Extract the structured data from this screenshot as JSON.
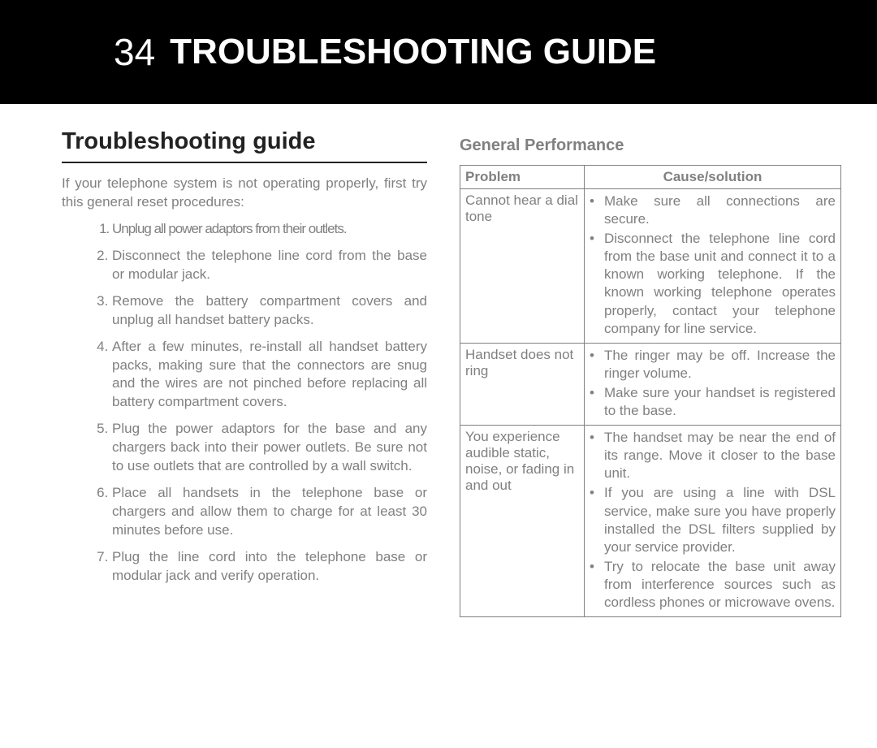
{
  "colors": {
    "header_bg": "#000000",
    "header_text": "#ffffff",
    "body_text": "#808080",
    "title_text": "#222222",
    "rule": "#222222",
    "table_border": "#808080",
    "page_bg": "#ffffff"
  },
  "header": {
    "page_number": "34",
    "title": "TROUBLESHOOTING GUIDE"
  },
  "left": {
    "section_title": "Troubleshooting guide",
    "intro": "If your telephone system is not operating properly, first try this general reset procedures:",
    "steps": [
      "Unplug all power adaptors from their outlets.",
      "Disconnect the telephone line cord from the base or modular jack.",
      "Remove the battery compartment covers and unplug all handset battery packs.",
      "After a few minutes, re-install all handset battery packs, making sure that the connectors are snug and the wires are not pinched before replacing all battery compartment covers.",
      "Plug the power adaptors for the base and any chargers back into their power outlets. Be sure not to use outlets that are controlled by a wall switch.",
      "Place all handsets in the telephone base or chargers and allow them to charge for at least 30 minutes before use.",
      "Plug the line cord into the telephone base or modular jack and verify operation."
    ]
  },
  "right": {
    "sub_title": "General Performance",
    "columns": [
      "Problem",
      "Cause/solution"
    ],
    "rows": [
      {
        "problem": "Cannot hear a dial tone",
        "solutions": [
          "Make sure all connections are secure.",
          "Disconnect the telephone line cord from the base unit and connect it to a known working telephone. If the known working telephone operates properly, contact your telephone company for line service."
        ]
      },
      {
        "problem": "Handset does not ring",
        "solutions": [
          "The ringer may be off. Increase the ringer volume.",
          "Make sure your handset is registered to the base."
        ]
      },
      {
        "problem": "You experience audible static, noise, or fading in and out",
        "solutions": [
          "The handset may be near the end of its range. Move it closer to the base unit.",
          "If you are using a line with DSL service, make sure you have properly installed the DSL filters supplied by your service provider.",
          "Try to relocate the base unit away from interference sources such as cordless phones or microwave ovens."
        ]
      }
    ]
  }
}
